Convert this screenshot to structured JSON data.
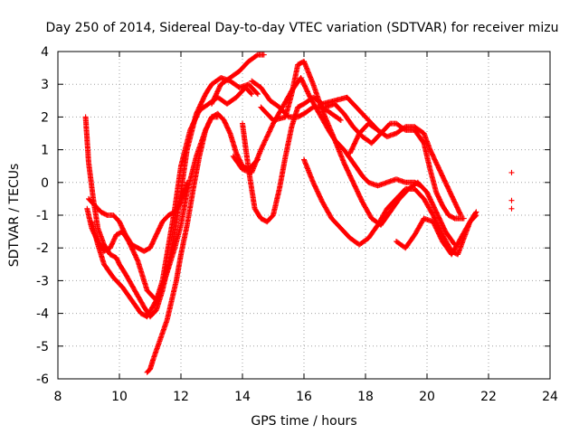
{
  "chart_data": {
    "type": "scatter",
    "title": "Day 250 of 2014, Sidereal Day-to-day VTEC variation (SDTVAR) for receiver mizu",
    "xlabel": "GPS time / hours",
    "ylabel": "SDTVAR / TECUs",
    "xlim": [
      8,
      24
    ],
    "ylim": [
      -6,
      4
    ],
    "xticks": [
      8,
      10,
      12,
      14,
      16,
      18,
      20,
      22,
      24
    ],
    "yticks": [
      -6,
      -5,
      -4,
      -3,
      -2,
      -1,
      0,
      1,
      2,
      3,
      4
    ],
    "grid": true,
    "marker": "+",
    "color": "#ff0000",
    "series": [
      {
        "name": "trace-1",
        "x": [
          8.9,
          9.0,
          9.15,
          9.3,
          9.5,
          9.7,
          9.9,
          10.0,
          10.2,
          10.5,
          10.8,
          11.0,
          11.2,
          11.4,
          11.6,
          11.8,
          12.0,
          12.2,
          12.5,
          12.8,
          13.0,
          13.3,
          13.6,
          13.9,
          14.2,
          14.5
        ],
        "y": [
          2.0,
          0.6,
          -0.5,
          -1.4,
          -1.9,
          -2.2,
          -2.3,
          -2.5,
          -2.8,
          -3.3,
          -3.8,
          -4.1,
          -3.9,
          -3.3,
          -2.5,
          -1.5,
          -0.3,
          1.0,
          2.1,
          2.7,
          3.0,
          3.2,
          3.1,
          2.9,
          3.0,
          2.7
        ]
      },
      {
        "name": "trace-2",
        "x": [
          8.95,
          9.1,
          9.3,
          9.5,
          9.7,
          9.9,
          10.1,
          10.3,
          10.6,
          10.9,
          11.2,
          11.4,
          11.6,
          11.8,
          12.0,
          12.3,
          12.6,
          12.9,
          13.2,
          13.5,
          13.8,
          14.1,
          14.3
        ],
        "y": [
          -0.8,
          -1.4,
          -1.8,
          -2.1,
          -2.0,
          -1.6,
          -1.5,
          -1.8,
          -2.4,
          -3.3,
          -3.6,
          -3.0,
          -1.9,
          -0.8,
          0.5,
          1.6,
          2.2,
          2.4,
          2.6,
          2.4,
          2.6,
          2.9,
          2.7
        ]
      },
      {
        "name": "trace-3",
        "x": [
          9.0,
          9.2,
          9.4,
          9.6,
          9.8,
          10.0,
          10.2,
          10.4,
          10.6,
          10.8,
          11.0,
          11.2,
          11.4,
          11.6,
          11.8,
          12.0,
          12.2
        ],
        "y": [
          -0.5,
          -0.7,
          -0.9,
          -1.0,
          -1.0,
          -1.2,
          -1.6,
          -1.9,
          -2.0,
          -2.1,
          -2.0,
          -1.6,
          -1.2,
          -1.0,
          -0.9,
          -0.6,
          0.0
        ]
      },
      {
        "name": "trace-4",
        "x": [
          9.1,
          9.3,
          9.5,
          9.8,
          10.1,
          10.4,
          10.7,
          10.9,
          11.2,
          11.5,
          11.8,
          12.0,
          12.2,
          12.5,
          12.8,
          13.0,
          13.2
        ],
        "y": [
          -1.2,
          -1.9,
          -2.5,
          -2.9,
          -3.2,
          -3.6,
          -4.0,
          -4.1,
          -3.6,
          -2.9,
          -2.0,
          -1.3,
          -0.3,
          0.8,
          1.6,
          2.0,
          2.0
        ]
      },
      {
        "name": "trace-5",
        "x": [
          10.9,
          11.0,
          11.1,
          11.25,
          11.4,
          11.55,
          11.7,
          11.85,
          12.0,
          12.2,
          12.4,
          12.6,
          12.8,
          13.0,
          13.2,
          13.4,
          13.6,
          13.8,
          14.0,
          14.2,
          14.5
        ],
        "y": [
          -5.8,
          -5.7,
          -5.4,
          -5.0,
          -4.6,
          -4.2,
          -3.6,
          -3.0,
          -2.2,
          -1.3,
          -0.2,
          0.8,
          1.6,
          2.0,
          2.1,
          1.9,
          1.5,
          0.9,
          0.5,
          0.4,
          0.7
        ]
      },
      {
        "name": "trace-6",
        "x": [
          13.7,
          14.0,
          14.3,
          14.6,
          15.0,
          15.3,
          15.6,
          15.9,
          16.2,
          16.5,
          16.8,
          17.0,
          17.3,
          17.6,
          17.9,
          18.1,
          18.4,
          18.7,
          19.0,
          19.3,
          19.6,
          19.8
        ],
        "y": [
          0.8,
          0.4,
          0.3,
          1.0,
          1.8,
          2.3,
          2.8,
          3.2,
          2.6,
          2.1,
          1.6,
          1.3,
          1.0,
          0.6,
          0.2,
          0.0,
          -0.1,
          0.0,
          0.1,
          0.0,
          0.0,
          -0.1
        ]
      },
      {
        "name": "trace-7",
        "x": [
          14.0,
          14.2,
          14.4,
          14.6,
          14.8,
          15.0,
          15.2,
          15.4,
          15.6,
          15.8,
          16.0,
          16.3,
          16.6,
          17.0,
          17.4,
          17.8,
          18.2,
          18.5
        ],
        "y": [
          1.8,
          0.4,
          -0.8,
          -1.1,
          -1.2,
          -1.0,
          -0.2,
          0.8,
          1.7,
          2.3,
          2.4,
          2.6,
          2.4,
          2.5,
          2.6,
          2.2,
          1.8,
          1.5
        ]
      },
      {
        "name": "trace-8",
        "x": [
          14.6,
          15.0,
          15.4,
          15.6,
          15.8,
          16.0,
          16.3,
          16.6,
          17.0,
          17.3,
          17.6,
          17.9,
          18.2,
          18.5,
          18.8,
          19.1,
          19.4,
          19.7,
          20.0,
          20.3,
          20.6,
          20.9
        ],
        "y": [
          2.3,
          1.9,
          2.0,
          2.7,
          3.6,
          3.7,
          3.0,
          2.2,
          1.3,
          0.6,
          0.0,
          -0.6,
          -1.1,
          -1.3,
          -0.9,
          -0.5,
          -0.2,
          0.0,
          -0.3,
          -0.9,
          -1.5,
          -1.9
        ]
      },
      {
        "name": "trace-9",
        "x": [
          16.0,
          16.3,
          16.6,
          16.9,
          17.2,
          17.5,
          17.8,
          18.1,
          18.4,
          18.7,
          19.0,
          19.3,
          19.6,
          19.9,
          20.2,
          20.5,
          20.8,
          21.0,
          21.2,
          21.4,
          21.6
        ],
        "y": [
          0.7,
          0.0,
          -0.6,
          -1.1,
          -1.4,
          -1.7,
          -1.9,
          -1.7,
          -1.3,
          -0.8,
          -0.5,
          -0.2,
          -0.2,
          -0.5,
          -1.0,
          -1.6,
          -2.1,
          -2.2,
          -1.7,
          -1.2,
          -1.0
        ]
      },
      {
        "name": "trace-10",
        "x": [
          16.7,
          17.0,
          17.3,
          17.6,
          17.9,
          18.2,
          18.5,
          18.8,
          19.0,
          19.3,
          19.6,
          19.9,
          20.1,
          20.3,
          20.5,
          20.7,
          20.9,
          21.2
        ],
        "y": [
          2.3,
          2.4,
          2.1,
          1.7,
          1.4,
          1.2,
          1.5,
          1.8,
          1.8,
          1.6,
          1.6,
          1.2,
          0.4,
          -0.3,
          -0.7,
          -1.0,
          -1.1,
          -1.1
        ]
      },
      {
        "name": "trace-11",
        "x": [
          17.5,
          17.8,
          18.1,
          18.4,
          18.7,
          19.0,
          19.3,
          19.6,
          19.9,
          20.1,
          20.3,
          20.5,
          20.7,
          20.9,
          21.1
        ],
        "y": [
          0.9,
          1.5,
          1.8,
          1.6,
          1.4,
          1.5,
          1.7,
          1.7,
          1.5,
          1.0,
          0.6,
          0.2,
          -0.2,
          -0.6,
          -1.0
        ]
      },
      {
        "name": "trace-12",
        "x": [
          19.0,
          19.3,
          19.6,
          19.9,
          20.2,
          20.5,
          20.8,
          21.1,
          21.4,
          21.6
        ],
        "y": [
          -1.8,
          -2.0,
          -1.6,
          -1.1,
          -1.2,
          -1.8,
          -2.2,
          -1.7,
          -1.2,
          -0.9
        ]
      },
      {
        "name": "trace-13",
        "x": [
          13.0,
          13.3,
          13.6,
          13.9,
          14.2,
          14.5,
          14.7
        ],
        "y": [
          2.4,
          3.0,
          3.2,
          3.4,
          3.7,
          3.9,
          3.9
        ]
      },
      {
        "name": "trace-14",
        "x": [
          14.3,
          14.6,
          14.9,
          15.2,
          15.5,
          15.8,
          16.0,
          16.3,
          16.6,
          16.9,
          17.2
        ],
        "y": [
          3.1,
          2.9,
          2.5,
          2.3,
          2.0,
          2.0,
          2.1,
          2.3,
          2.3,
          2.1,
          1.9
        ]
      },
      {
        "name": "trace-15",
        "x": [
          22.75
        ],
        "y": [
          0.3
        ]
      },
      {
        "name": "trace-16",
        "x": [
          22.75
        ],
        "y": [
          -0.55
        ]
      },
      {
        "name": "trace-17",
        "x": [
          22.75
        ],
        "y": [
          -0.8
        ]
      }
    ]
  }
}
